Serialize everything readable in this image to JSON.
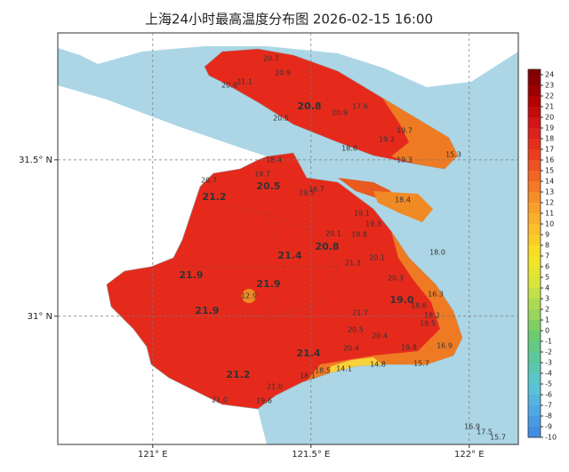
{
  "chart_data": {
    "type": "map",
    "title": "上海24小时最高温度分布图 2026-02-15 16:00",
    "xlim": [
      120.7,
      122.155
    ],
    "ylim": [
      30.59,
      31.906
    ],
    "xticks": [
      {
        "value": 121,
        "label": "121° E"
      },
      {
        "value": 121.5,
        "label": "121.5° E"
      },
      {
        "value": 122,
        "label": "122° E"
      }
    ],
    "yticks": [
      {
        "value": 31.5,
        "label": "31.5° N"
      },
      {
        "value": 31,
        "label": "31° N"
      }
    ],
    "grid": true,
    "colorbar": {
      "ticks": [
        24,
        23,
        22,
        21,
        20,
        19,
        18,
        17,
        16,
        15,
        14,
        13,
        12,
        11,
        10,
        9,
        8,
        7,
        6,
        5,
        4,
        3,
        2,
        1,
        0,
        -1,
        -2,
        -3,
        -4,
        -5,
        -6,
        -7,
        -8,
        -9,
        -10
      ],
      "colors": [
        "#7f0000",
        "#b30000",
        "#d7191c",
        "#ea3a1c",
        "#f26a24",
        "#f89b2a",
        "#fdc02c",
        "#f8e41f",
        "#d8e63a",
        "#a6d857",
        "#6ccb6b",
        "#5ac7a0",
        "#5cc6d6",
        "#4fa8e6",
        "#3f86e0"
      ]
    },
    "stations": {
      "values": [
        20.7,
        20.9,
        20.6,
        21.1,
        20.8,
        20.5,
        20.9,
        17.6,
        19.7,
        19.2,
        18.8,
        19.3,
        15.3,
        18.4,
        19.3,
        18.4,
        19.7,
        20.7,
        20.5,
        21.2,
        16.7,
        19.5,
        19.1,
        20.1,
        19.8,
        20.8,
        18.0,
        21.4,
        20.1,
        21.3,
        21.9,
        21.9,
        20.3,
        12.9,
        19.0,
        16.3,
        18.6,
        21.9,
        18.2,
        21.7,
        19.5,
        20.5,
        20.4,
        16.9,
        19.8,
        21.4,
        20.4,
        15.7,
        14.8,
        14.1,
        18.5,
        18.1,
        21.2,
        21.0,
        19.6,
        21.0,
        16.9,
        17.5,
        15.7
      ],
      "value_labels": [
        "20.7",
        "20.9",
        "20.6",
        "21.1",
        "20.8",
        "20.5",
        "20.9",
        "17.6",
        "19.7",
        "19.2",
        "18.8",
        "19.3",
        "15.3",
        "18.4",
        "19.3",
        "18.4",
        "19.7",
        "20.7",
        "20.5",
        "21.2",
        "16.7",
        "19.5",
        "19.1",
        "20.1",
        "19.8",
        "20.8",
        "18.0",
        "21.4",
        "20.1",
        "21.3",
        "21.9",
        "21.9",
        "20.3",
        "12.9",
        "19.0",
        "16.3",
        "18.6",
        "21.9",
        "18.2",
        "21.7",
        "19.5",
        "20.5",
        "20.4",
        "16.9",
        "19.8",
        "21.4",
        "20.4",
        "15.7",
        "14.8",
        "14.1",
        "18.5",
        "18.1",
        "21.2",
        "21.0",
        "19.6",
        "21.0",
        "16.9",
        "17.5",
        "15.7"
      ]
    }
  }
}
